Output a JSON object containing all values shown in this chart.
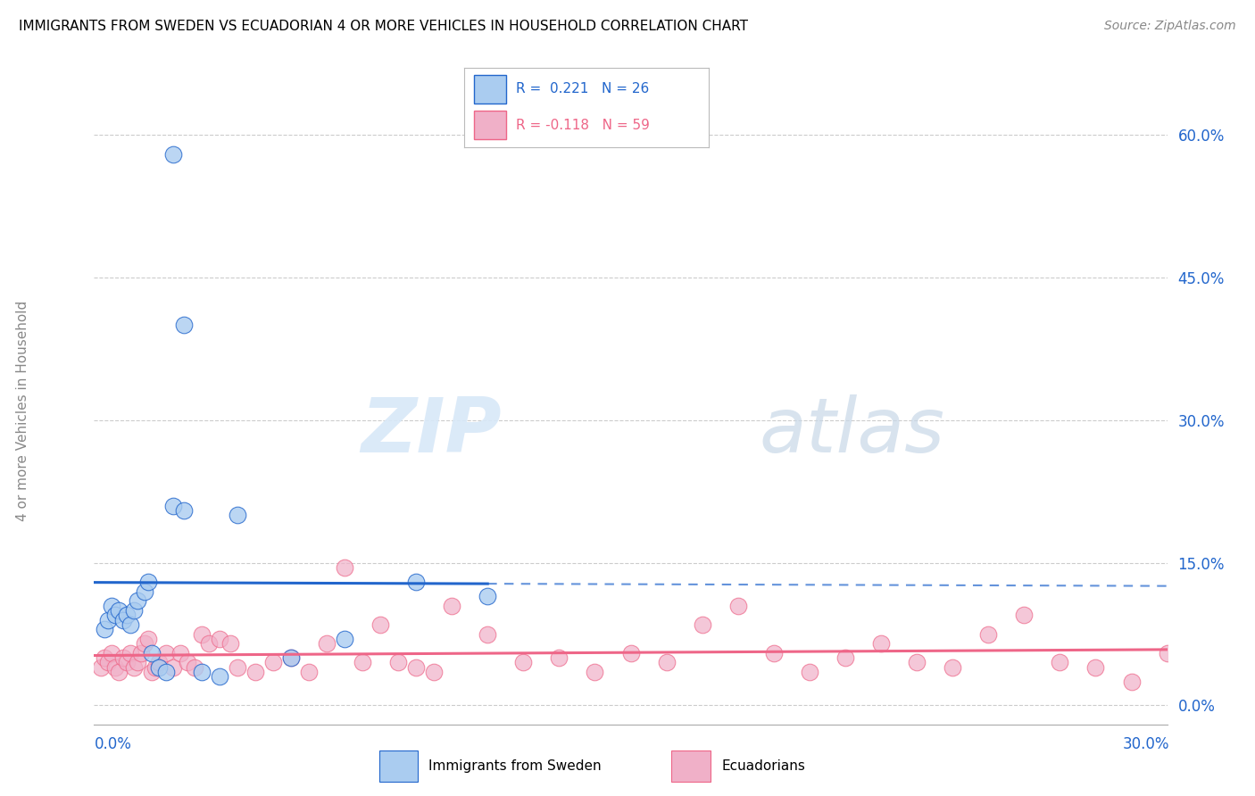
{
  "title": "IMMIGRANTS FROM SWEDEN VS ECUADORIAN 4 OR MORE VEHICLES IN HOUSEHOLD CORRELATION CHART",
  "source": "Source: ZipAtlas.com",
  "ylabel": "4 or more Vehicles in Household",
  "ytick_vals": [
    0.0,
    15.0,
    30.0,
    45.0,
    60.0
  ],
  "xrange": [
    0.0,
    30.0
  ],
  "yrange": [
    -2.0,
    65.0
  ],
  "color_sweden": "#aaccf0",
  "color_ecuadorian": "#f0b0c8",
  "color_line_sweden": "#2266cc",
  "color_line_ecuadorian": "#ee6688",
  "watermark_zip": "ZIP",
  "watermark_atlas": "atlas",
  "sweden_x": [
    0.3,
    0.4,
    0.5,
    0.6,
    0.7,
    0.8,
    0.9,
    1.0,
    1.1,
    1.2,
    1.4,
    1.5,
    1.6,
    1.8,
    2.0,
    2.2,
    2.5,
    3.0,
    3.5,
    4.0,
    5.5,
    7.0,
    9.0,
    11.0,
    2.2,
    2.5
  ],
  "sweden_y": [
    8.0,
    9.0,
    10.5,
    9.5,
    10.0,
    9.0,
    9.5,
    8.5,
    10.0,
    11.0,
    12.0,
    13.0,
    5.5,
    4.0,
    3.5,
    21.0,
    20.5,
    3.5,
    3.0,
    20.0,
    5.0,
    7.0,
    13.0,
    11.5,
    58.0,
    40.0
  ],
  "ecuadorian_x": [
    0.2,
    0.3,
    0.4,
    0.5,
    0.6,
    0.7,
    0.8,
    0.9,
    1.0,
    1.1,
    1.2,
    1.3,
    1.4,
    1.5,
    1.6,
    1.7,
    1.8,
    2.0,
    2.2,
    2.4,
    2.6,
    2.8,
    3.0,
    3.2,
    3.5,
    3.8,
    4.0,
    4.5,
    5.0,
    5.5,
    6.0,
    6.5,
    7.0,
    7.5,
    8.0,
    8.5,
    9.0,
    9.5,
    10.0,
    11.0,
    12.0,
    13.0,
    14.0,
    15.0,
    16.0,
    17.0,
    18.0,
    19.0,
    20.0,
    21.0,
    22.0,
    23.0,
    24.0,
    25.0,
    26.0,
    27.0,
    28.0,
    29.0,
    30.0
  ],
  "ecuadorian_y": [
    4.0,
    5.0,
    4.5,
    5.5,
    4.0,
    3.5,
    5.0,
    4.5,
    5.5,
    4.0,
    4.5,
    5.5,
    6.5,
    7.0,
    3.5,
    4.0,
    4.5,
    5.5,
    4.0,
    5.5,
    4.5,
    4.0,
    7.5,
    6.5,
    7.0,
    6.5,
    4.0,
    3.5,
    4.5,
    5.0,
    3.5,
    6.5,
    14.5,
    4.5,
    8.5,
    4.5,
    4.0,
    3.5,
    10.5,
    7.5,
    4.5,
    5.0,
    3.5,
    5.5,
    4.5,
    8.5,
    10.5,
    5.5,
    3.5,
    5.0,
    6.5,
    4.5,
    4.0,
    7.5,
    9.5,
    4.5,
    4.0,
    2.5,
    5.5
  ]
}
